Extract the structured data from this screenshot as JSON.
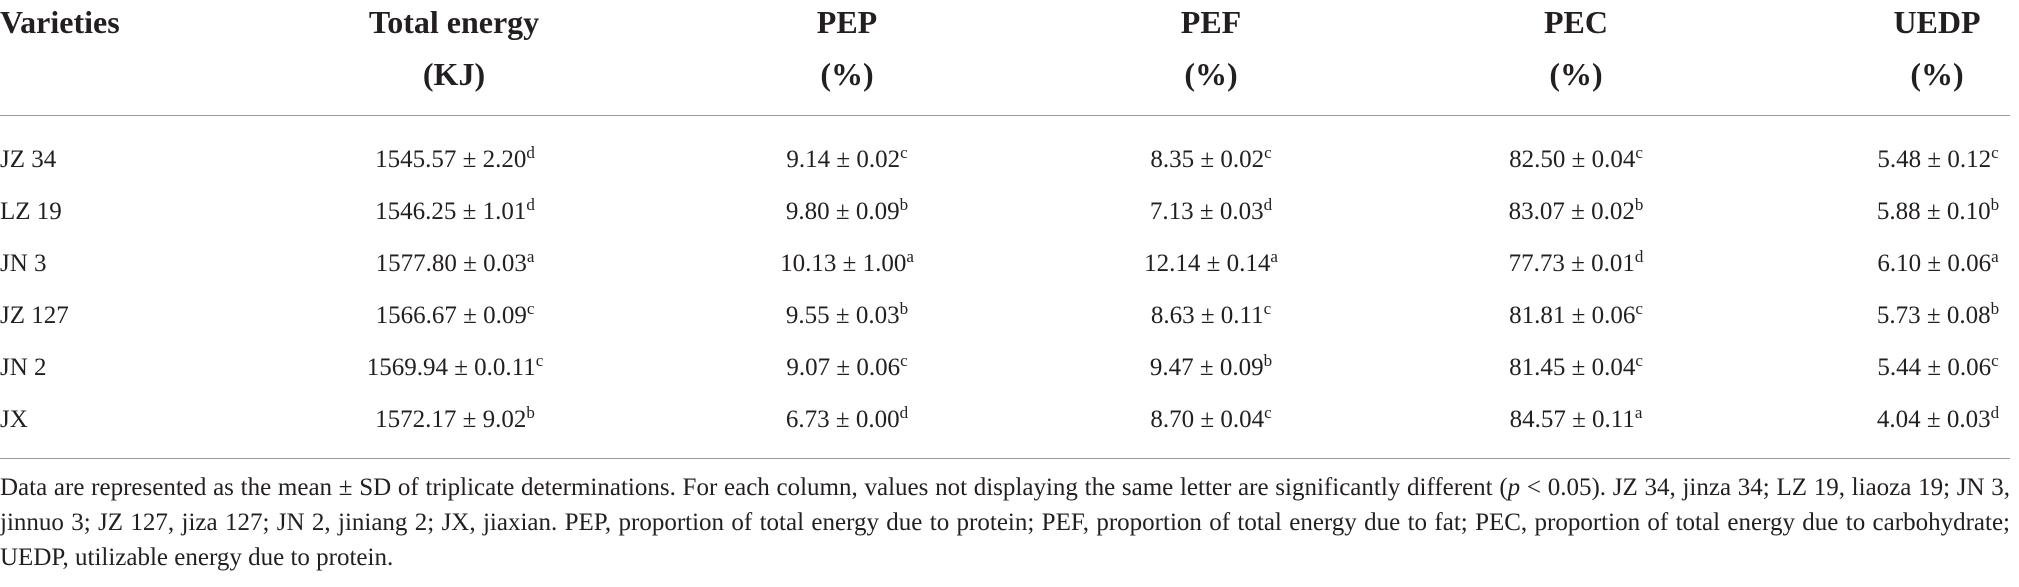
{
  "table": {
    "headers": [
      {
        "line1": "Varieties",
        "line2": ""
      },
      {
        "line1": "Total energy",
        "line2": "(KJ)"
      },
      {
        "line1": "PEP",
        "line2": "(%)"
      },
      {
        "line1": "PEF",
        "line2": "(%)"
      },
      {
        "line1": "PEC",
        "line2": "(%)"
      },
      {
        "line1": "UEDP",
        "line2": "(%)"
      }
    ],
    "rows": [
      {
        "variety": "JZ 34",
        "cells": [
          {
            "v": "1545.57 ± 2.20",
            "s": "d"
          },
          {
            "v": "9.14 ± 0.02",
            "s": "c"
          },
          {
            "v": "8.35 ± 0.02",
            "s": "c"
          },
          {
            "v": "82.50 ± 0.04",
            "s": "c"
          },
          {
            "v": "5.48 ± 0.12",
            "s": "c"
          }
        ]
      },
      {
        "variety": "LZ 19",
        "cells": [
          {
            "v": "1546.25 ± 1.01",
            "s": "d"
          },
          {
            "v": "9.80 ± 0.09",
            "s": "b"
          },
          {
            "v": "7.13 ± 0.03",
            "s": "d"
          },
          {
            "v": "83.07 ± 0.02",
            "s": "b"
          },
          {
            "v": "5.88 ± 0.10",
            "s": "b"
          }
        ]
      },
      {
        "variety": "JN 3",
        "cells": [
          {
            "v": "1577.80 ± 0.03",
            "s": "a"
          },
          {
            "v": "10.13 ± 1.00",
            "s": "a"
          },
          {
            "v": "12.14 ± 0.14",
            "s": "a"
          },
          {
            "v": "77.73 ± 0.01",
            "s": "d"
          },
          {
            "v": "6.10 ± 0.06",
            "s": "a"
          }
        ]
      },
      {
        "variety": "JZ 127",
        "cells": [
          {
            "v": "1566.67 ± 0.09",
            "s": "c"
          },
          {
            "v": "9.55 ± 0.03",
            "s": "b"
          },
          {
            "v": "8.63 ± 0.11",
            "s": "c"
          },
          {
            "v": "81.81 ± 0.06",
            "s": "c"
          },
          {
            "v": "5.73 ± 0.08",
            "s": "b"
          }
        ]
      },
      {
        "variety": "JN 2",
        "cells": [
          {
            "v": "1569.94 ± 0.0.11",
            "s": "c"
          },
          {
            "v": "9.07 ± 0.06",
            "s": "c"
          },
          {
            "v": "9.47 ± 0.09",
            "s": "b"
          },
          {
            "v": "81.45 ± 0.04",
            "s": "c"
          },
          {
            "v": "5.44 ± 0.06",
            "s": "c"
          }
        ]
      },
      {
        "variety": "JX",
        "cells": [
          {
            "v": "1572.17 ± 9.02",
            "s": "b"
          },
          {
            "v": "6.73 ± 0.00",
            "s": "d"
          },
          {
            "v": "8.70 ± 0.04",
            "s": "c"
          },
          {
            "v": "84.57 ± 0.11",
            "s": "a"
          },
          {
            "v": "4.04 ± 0.03",
            "s": "d"
          }
        ]
      }
    ]
  },
  "footnote": {
    "part1": "Data are represented as the mean ± SD of triplicate determinations. For each column, values not displaying the same letter are significantly different (",
    "p": "p",
    "part2": " < 0.05). JZ 34, jinza 34; LZ 19, liaoza 19; JN 3, jinnuo 3; JZ 127, jiza 127; JN 2, jiniang 2; JX, jiaxian. PEP, proportion of total energy due to protein; PEF, proportion of total energy due to fat; PEC, proportion of total energy due to carbohydrate; UEDP, utilizable energy due to protein."
  }
}
